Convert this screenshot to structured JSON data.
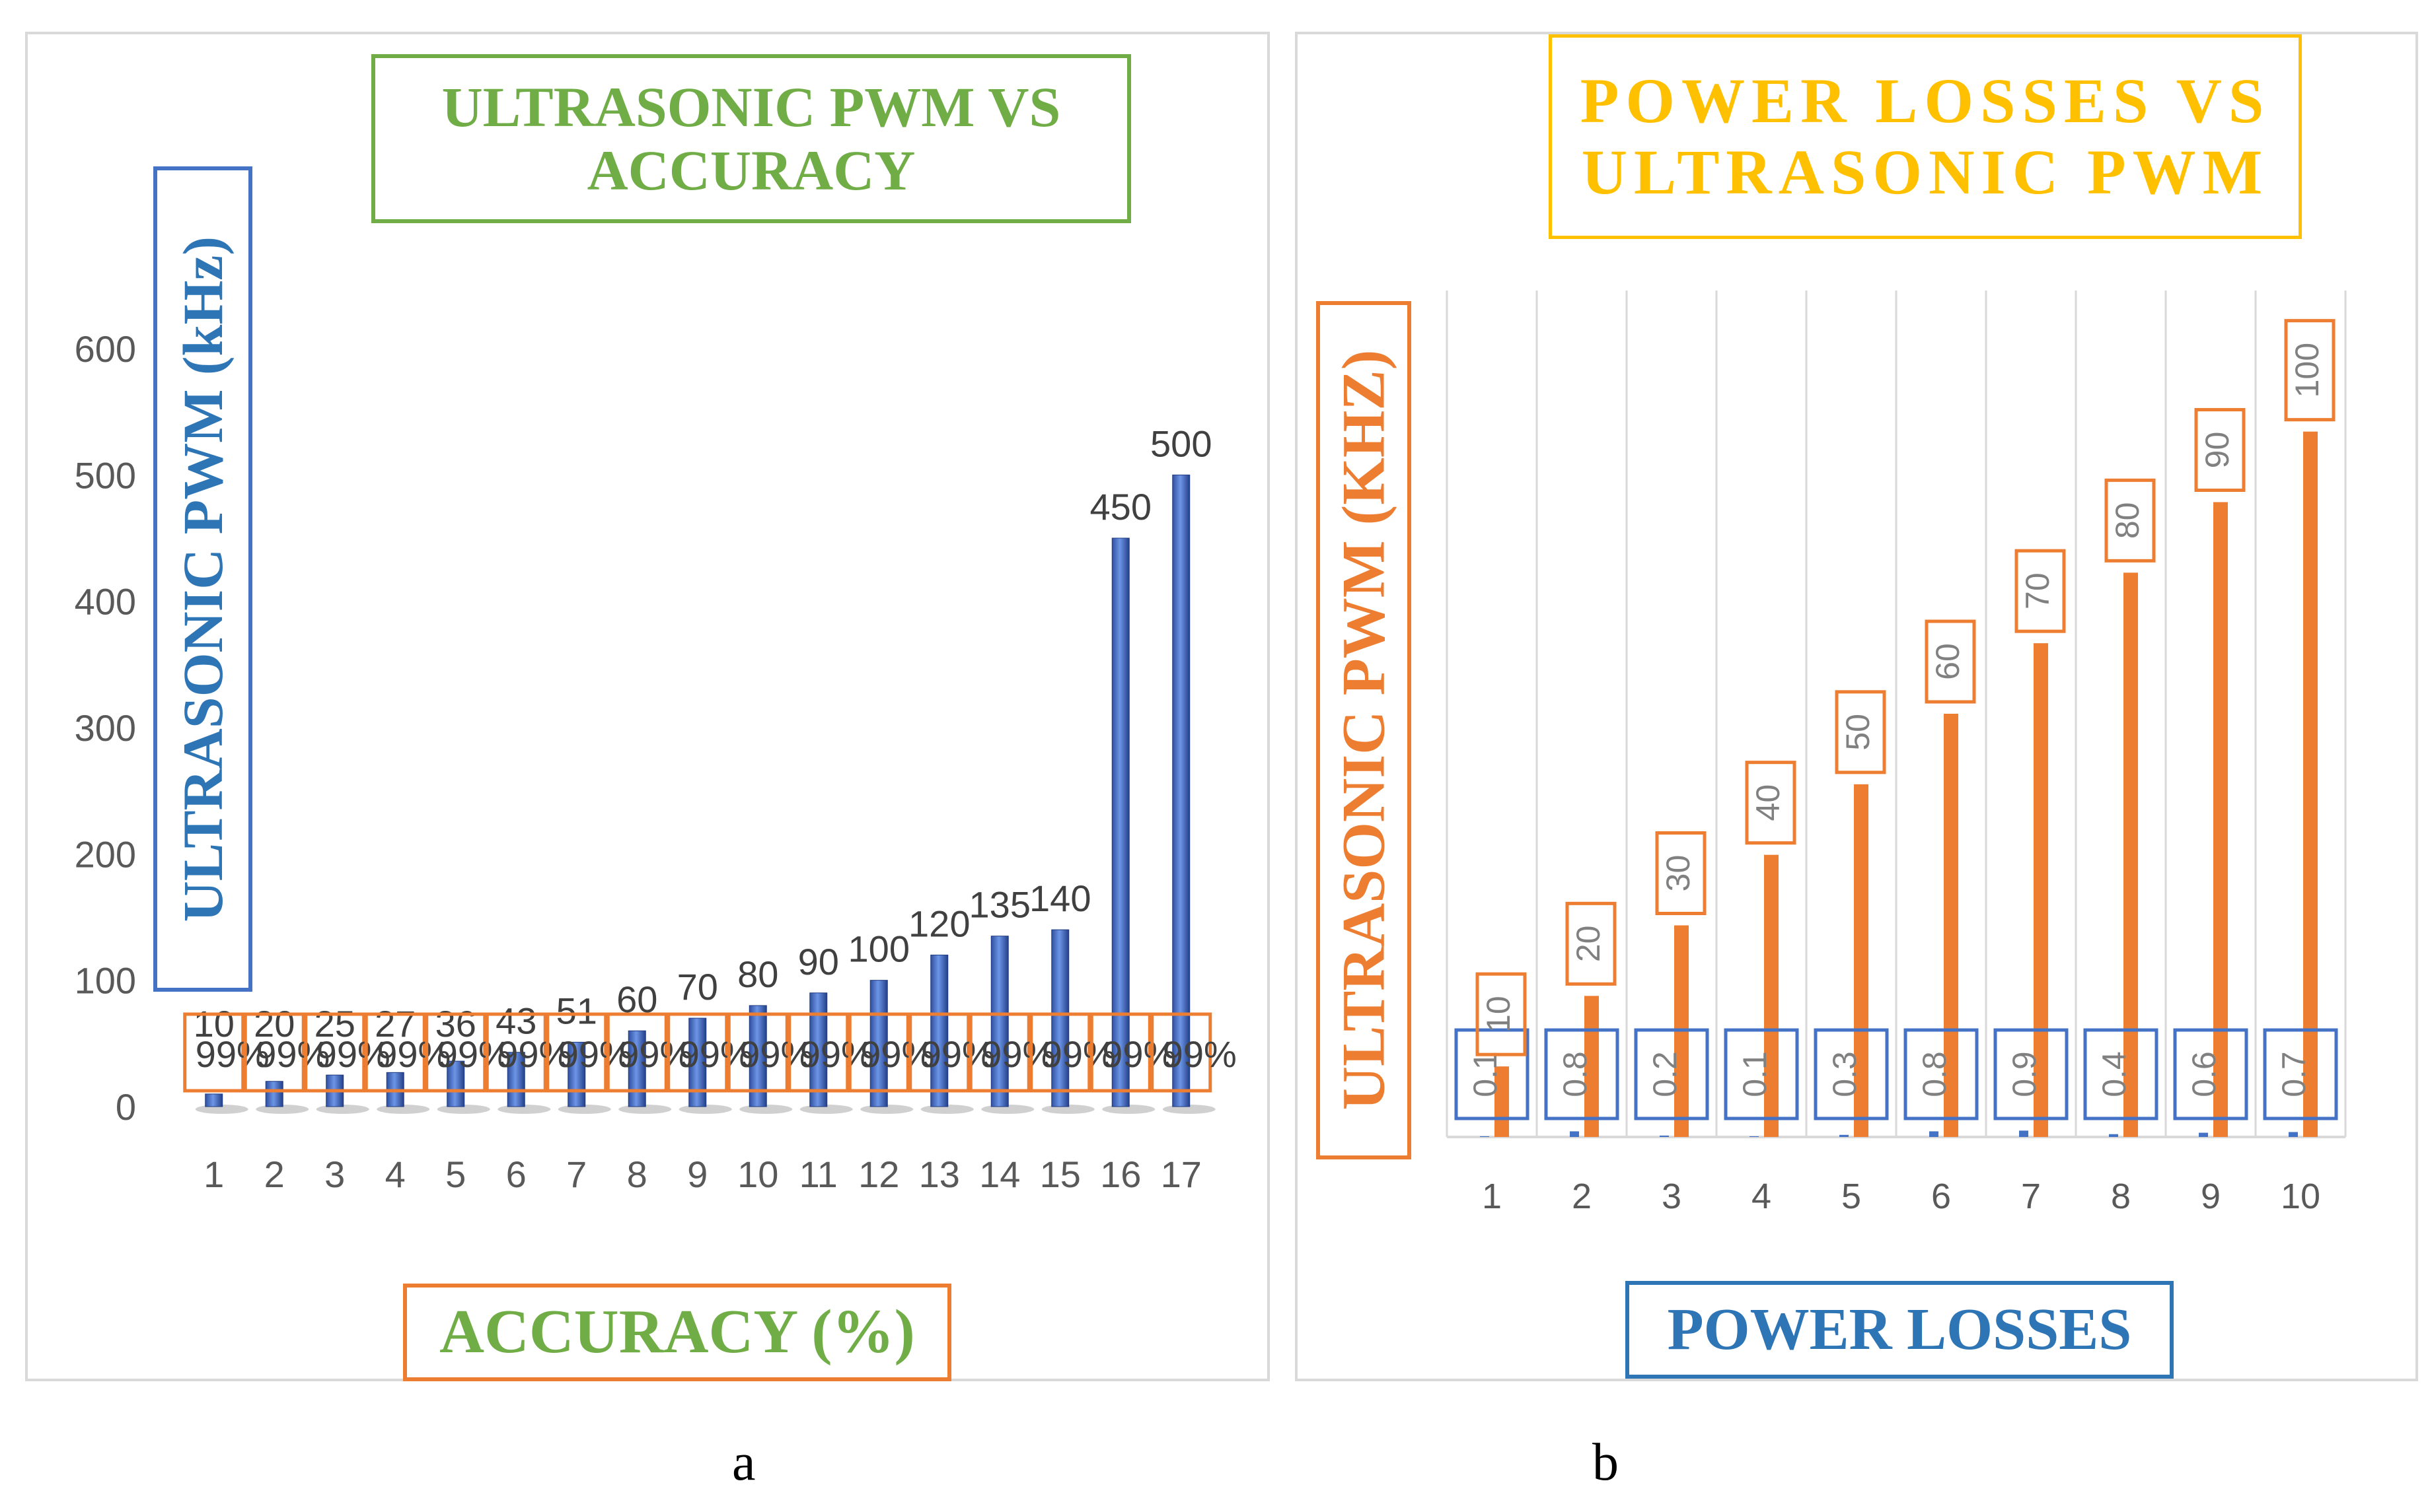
{
  "chart_data": [
    {
      "type": "bar",
      "title": "ULTRASONIC PWM VS ACCURACY",
      "ylabel": "ULTRASONIC PWM (kHz)",
      "xlabel": "ACCURACY (%)",
      "ylim": [
        0,
        600
      ],
      "yticks": [
        "0",
        "100",
        "200",
        "300",
        "400",
        "500",
        "600"
      ],
      "categories": [
        "1",
        "2",
        "3",
        "4",
        "5",
        "6",
        "7",
        "8",
        "9",
        "10",
        "11",
        "12",
        "13",
        "14",
        "15",
        "16",
        "17"
      ],
      "series": [
        {
          "values": [
            10,
            20,
            25,
            27,
            36,
            43,
            51,
            60,
            70,
            80,
            90,
            100,
            120,
            135,
            140,
            450,
            500
          ],
          "labels": [
            "10",
            "20",
            "25",
            "27",
            "36",
            "43",
            "51",
            "60",
            "70",
            "80",
            "90",
            "100",
            "120",
            "135",
            "140",
            "450",
            "500"
          ]
        },
        {
          "values": [
            99,
            99,
            99,
            99,
            99,
            99,
            99,
            99,
            99,
            99,
            99,
            99,
            99,
            99,
            99,
            99,
            99
          ],
          "labels": [
            "99%",
            "99%",
            "99%",
            "99%",
            "99%",
            "99%",
            "99%",
            "99%",
            "99%",
            "99%",
            "99%",
            "99%",
            "99%",
            "99%",
            "99%",
            "99%",
            "99%"
          ]
        }
      ],
      "grid": false,
      "bar_color": "#4472c4",
      "box_color": "#ed7d31"
    },
    {
      "type": "bar",
      "title": "POWER LOSSES VS ULTRASONIC PWM",
      "ylabel": "ULTRASONIC PWM (KHZ)",
      "xlabel": "POWER LOSSES",
      "ylim": [
        0,
        120
      ],
      "categories": [
        "1",
        "2",
        "3",
        "4",
        "5",
        "6",
        "7",
        "8",
        "9",
        "10"
      ],
      "series": [
        {
          "values": [
            0.1,
            0.8,
            0.2,
            0.1,
            0.3,
            0.8,
            0.9,
            0.4,
            0.6,
            0.7
          ],
          "labels": [
            "0.1",
            "0.8",
            "0.2",
            "0.1",
            "0.3",
            "0.8",
            "0.9",
            "0.4",
            "0.6",
            "0.7"
          ],
          "color": "#4472c4"
        },
        {
          "values": [
            10,
            20,
            30,
            40,
            50,
            60,
            70,
            80,
            90,
            100
          ],
          "labels": [
            "10",
            "20",
            "30",
            "40",
            "50",
            "60",
            "70",
            "80",
            "90",
            "100"
          ],
          "color": "#ed7d31"
        }
      ],
      "grid": true
    }
  ],
  "subfigure_labels": [
    "a",
    "b"
  ],
  "colors": {
    "green": "#70ad47",
    "blue": "#4472c4",
    "orange": "#ed7d31",
    "gold": "#ffc000"
  }
}
